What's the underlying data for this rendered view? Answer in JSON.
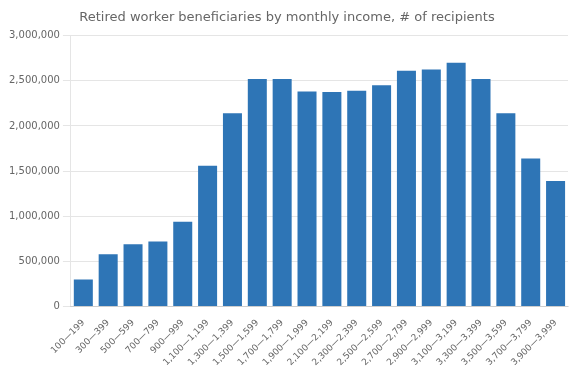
{
  "chart_data": {
    "type": "bar",
    "title": "Retired worker beneficiaries by monthly income, # of recipients",
    "categories": [
      "100—199",
      "300—399",
      "500—599",
      "700—799",
      "900—999",
      "1,100—1,199",
      "1,300—1,399",
      "1,500—1,599",
      "1,700—1,799",
      "1,900—1,999",
      "2,100—2,199",
      "2,300—2,399",
      "2,500—2,599",
      "2,700—2,799",
      "2,900—2,999",
      "3,100—3,199",
      "3,300—3,399",
      "3,500—3,599",
      "3,700—3,799",
      "3,900—3,999"
    ],
    "values": [
      300000,
      580000,
      690000,
      720000,
      940000,
      1560000,
      2140000,
      2520000,
      2520000,
      2380000,
      2375000,
      2390000,
      2450000,
      2610000,
      2625000,
      2700000,
      2520000,
      2140000,
      1640000,
      1390000
    ],
    "color": "#2e75b6",
    "ylim": [
      0,
      3000000
    ],
    "yticks": [
      0,
      {
        "value": 500000,
        "label": "500,000"
      },
      {
        "value": 1000000,
        "label": "1,000,000"
      },
      {
        "value": 1500000,
        "label": "1,500,000"
      },
      {
        "value": 2000000,
        "label": "2,000,000"
      },
      {
        "value": 2500000,
        "label": "2,500,000"
      },
      {
        "value": 3000000,
        "label": "3,000,000"
      }
    ],
    "grid": true
  }
}
